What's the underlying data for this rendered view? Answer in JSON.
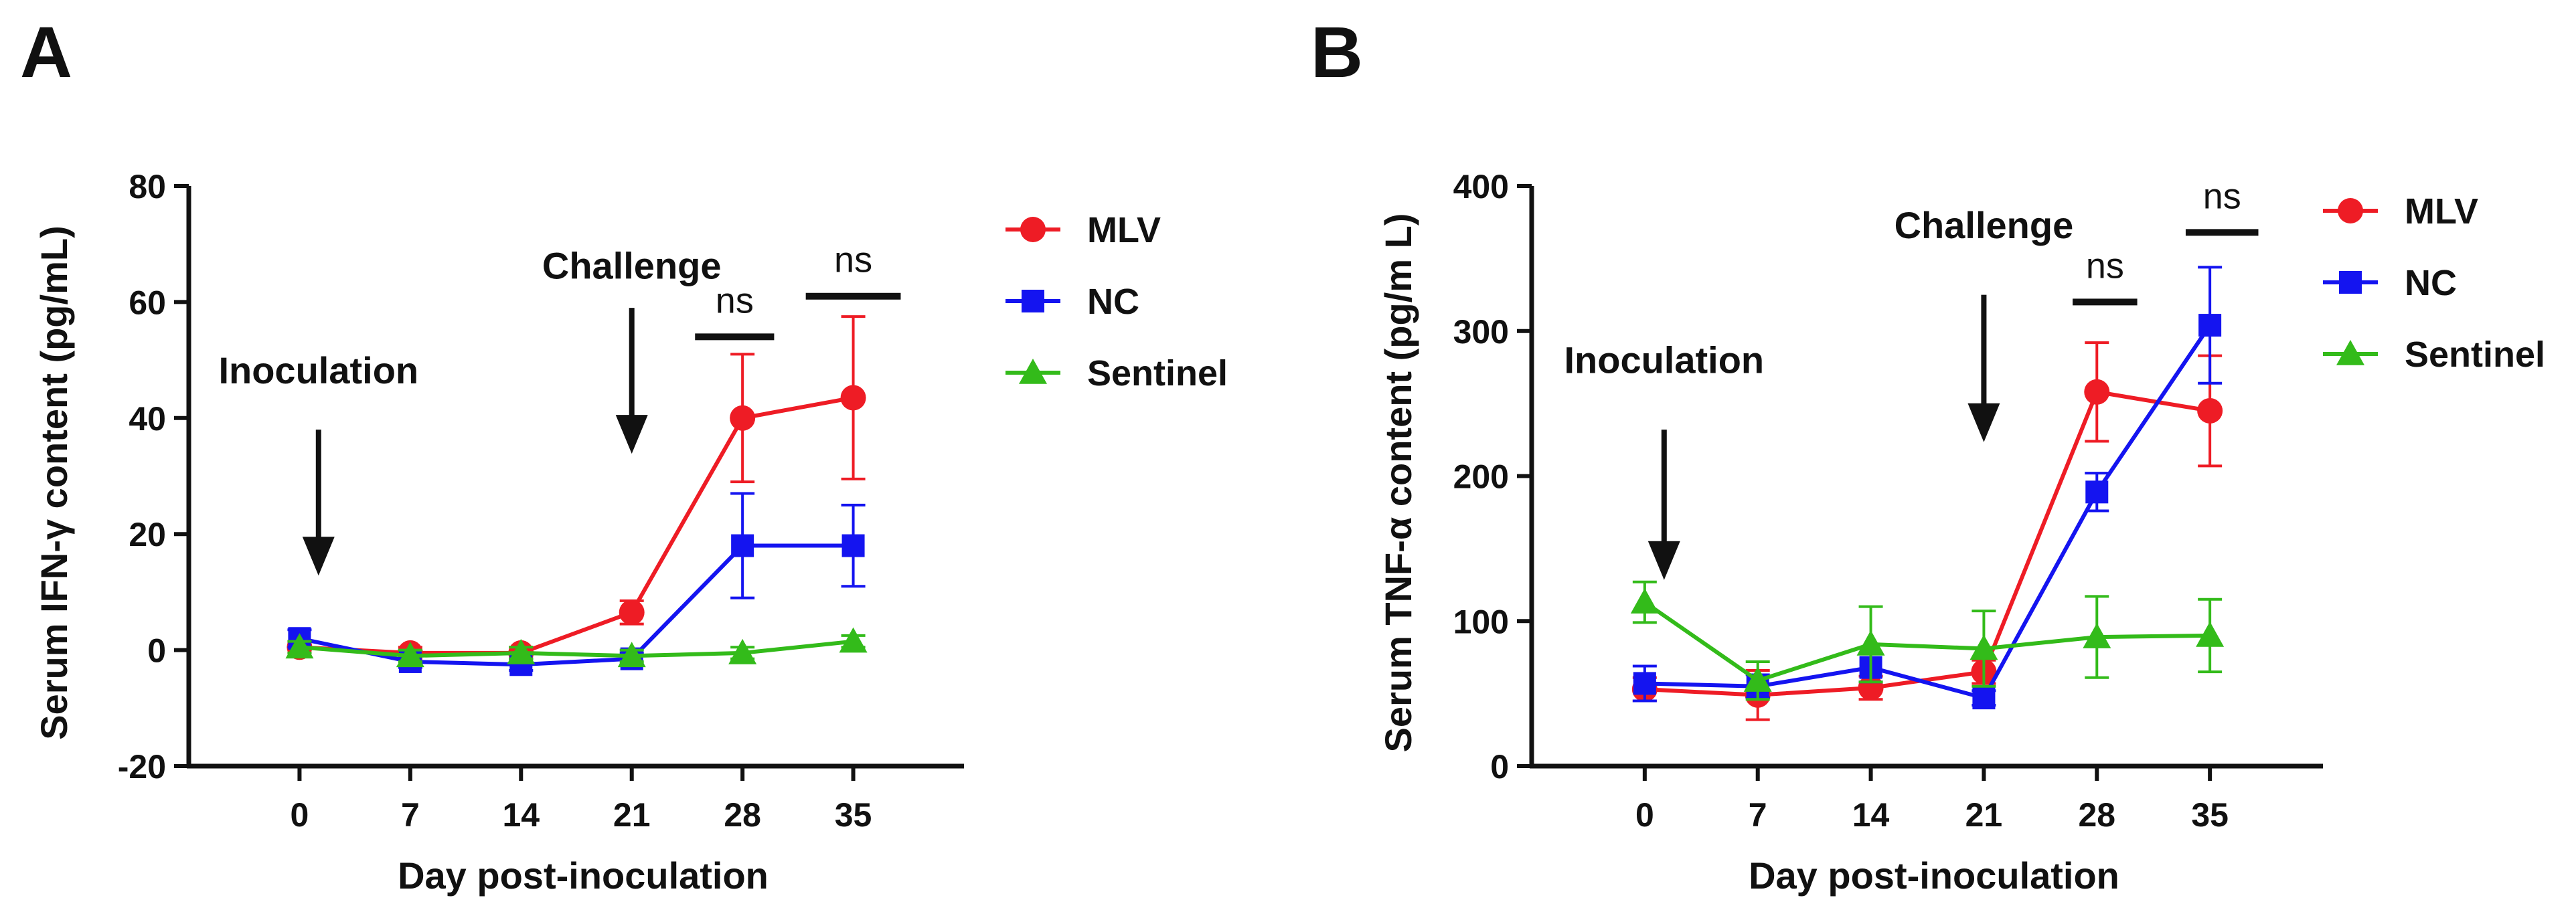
{
  "colors": {
    "MLV": "#ee1c25",
    "NC": "#1414f0",
    "Sentinel": "#33bb1a",
    "axis": "#111111"
  },
  "chart_data": [
    {
      "panel": "A",
      "type": "line",
      "title": "",
      "xlabel": "Day post-inoculation",
      "ylabel": "Serum IFN-γ content (pg/mL)",
      "x": [
        0,
        7,
        14,
        21,
        28,
        35
      ],
      "x_ticks": [
        "0",
        "7",
        "14",
        "21",
        "28",
        "35"
      ],
      "xlim": [
        -7,
        42
      ],
      "ylim": [
        -20,
        80
      ],
      "y_ticks": [
        "-20",
        "0",
        "20",
        "40",
        "60",
        "80"
      ],
      "legend_position": "right",
      "series": [
        {
          "name": "MLV",
          "marker": "circle",
          "values": [
            0.5,
            -0.5,
            -0.5,
            6.5,
            40,
            43.5
          ],
          "errors": [
            1,
            1,
            1,
            2,
            11,
            14
          ]
        },
        {
          "name": "NC",
          "marker": "square",
          "values": [
            2,
            -2,
            -2.5,
            -1.5,
            18,
            18
          ],
          "errors": [
            1.5,
            1,
            1,
            1,
            9,
            7
          ]
        },
        {
          "name": "Sentinel",
          "marker": "triangle",
          "values": [
            0.5,
            -1,
            -0.5,
            -1,
            -0.5,
            1.5
          ],
          "errors": [
            1,
            1,
            1,
            1,
            1,
            1
          ]
        }
      ],
      "annotations": [
        {
          "text": "Inoculation",
          "x": 1.2,
          "y": 46,
          "arrow_from": 38,
          "arrow_to": 14
        },
        {
          "text": "Challenge",
          "x": 21,
          "y": 64,
          "arrow_from": 59,
          "arrow_to": 35
        }
      ],
      "significance": [
        {
          "text": "ns",
          "x_start": 25,
          "x_end": 30,
          "y": 54
        },
        {
          "text": "ns",
          "x_start": 32,
          "x_end": 38,
          "y": 61
        }
      ]
    },
    {
      "panel": "B",
      "type": "line",
      "title": "",
      "xlabel": "Day post-inoculation",
      "ylabel": "Serum TNF-α content (pg/m L)",
      "x": [
        0,
        7,
        14,
        21,
        28,
        35
      ],
      "x_ticks": [
        "0",
        "7",
        "14",
        "21",
        "28",
        "35"
      ],
      "xlim": [
        -7,
        42
      ],
      "ylim": [
        0,
        400
      ],
      "y_ticks": [
        "0",
        "100",
        "200",
        "300",
        "400"
      ],
      "legend_position": "top-right",
      "series": [
        {
          "name": "MLV",
          "marker": "circle",
          "values": [
            53,
            49,
            54,
            65,
            258,
            245
          ],
          "errors": [
            8,
            17,
            8,
            8,
            34,
            38
          ]
        },
        {
          "name": "NC",
          "marker": "square",
          "values": [
            57,
            55,
            68,
            47,
            189,
            304
          ],
          "errors": [
            12,
            8,
            10,
            5,
            13,
            40
          ]
        },
        {
          "name": "Sentinel",
          "marker": "triangle",
          "values": [
            113,
            59,
            84,
            81,
            89,
            90
          ],
          "errors": [
            14,
            13,
            26,
            26,
            28,
            25
          ]
        }
      ],
      "annotations": [
        {
          "text": "Inoculation",
          "x": 1.2,
          "y": 271,
          "arrow_from": 232,
          "arrow_to": 133
        },
        {
          "text": "Challenge",
          "x": 21,
          "y": 364,
          "arrow_from": 325,
          "arrow_to": 228
        }
      ],
      "significance": [
        {
          "text": "ns",
          "x_start": 26.5,
          "x_end": 30.5,
          "y": 320
        },
        {
          "text": "ns",
          "x_start": 33.5,
          "x_end": 38,
          "y": 368
        }
      ]
    }
  ]
}
